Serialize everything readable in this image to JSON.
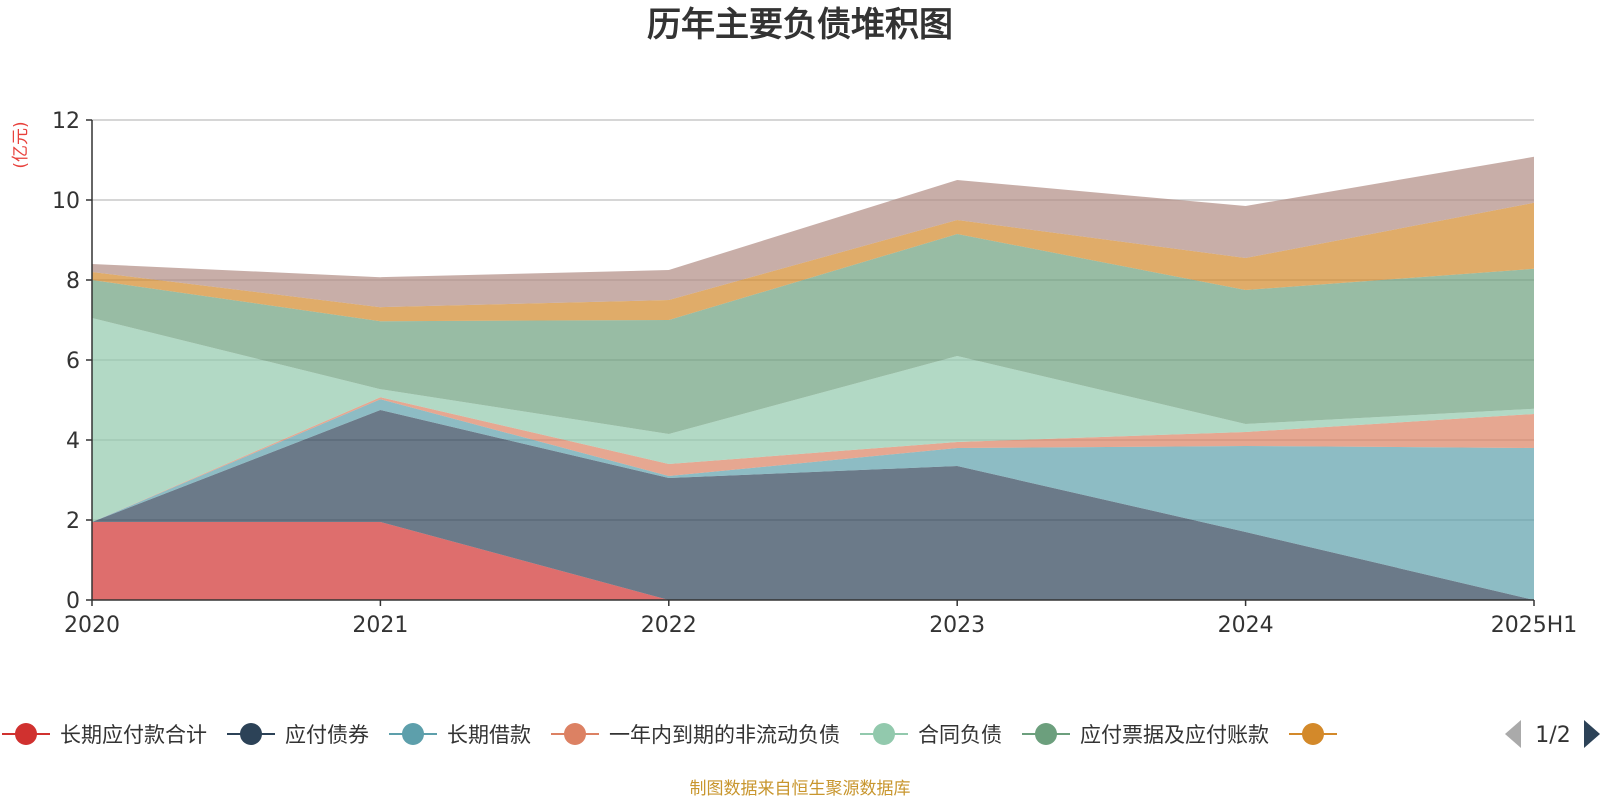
{
  "chart_data": {
    "type": "area",
    "stacked": true,
    "title": "历年主要负债堆积图",
    "ylabel": "(亿元)",
    "ylim": [
      0,
      12
    ],
    "yticks": [
      0,
      2,
      4,
      6,
      8,
      10,
      12
    ],
    "grid": true,
    "categories": [
      "2020",
      "2021",
      "2022",
      "2023",
      "2024",
      "2025H1"
    ],
    "series": [
      {
        "name": "长期应付款合计",
        "color": "#d0312f",
        "values": [
          1.95,
          1.95,
          0.0,
          0.0,
          0.0,
          0.0
        ]
      },
      {
        "name": "应付债券",
        "color": "#2c4257",
        "values": [
          0.0,
          2.8,
          3.05,
          3.35,
          1.7,
          0.0
        ]
      },
      {
        "name": "长期借款",
        "color": "#5d9fab",
        "values": [
          0.0,
          0.27,
          0.05,
          0.45,
          2.15,
          3.8
        ]
      },
      {
        "name": "一年内到期的非流动负债",
        "color": "#dc8163",
        "values": [
          0.0,
          0.05,
          0.3,
          0.15,
          0.35,
          0.85
        ]
      },
      {
        "name": "合同负债",
        "color": "#92c9ad",
        "values": [
          5.1,
          0.2,
          0.75,
          2.15,
          0.2,
          0.13
        ]
      },
      {
        "name": "应付票据及应付账款",
        "color": "#6c9f7d",
        "values": [
          0.95,
          1.7,
          2.85,
          3.05,
          3.35,
          3.5
        ]
      },
      {
        "name": "",
        "color": "#d3892a",
        "values": [
          0.2,
          0.35,
          0.5,
          0.35,
          0.8,
          1.65
        ]
      },
      {
        "name": "",
        "color": "#b08b83",
        "values": [
          0.2,
          0.75,
          0.75,
          1.0,
          1.3,
          1.15
        ]
      }
    ],
    "legend_position": "bottom",
    "legend_page": "1/2",
    "source": "制图数据来自恒生聚源数据库"
  }
}
